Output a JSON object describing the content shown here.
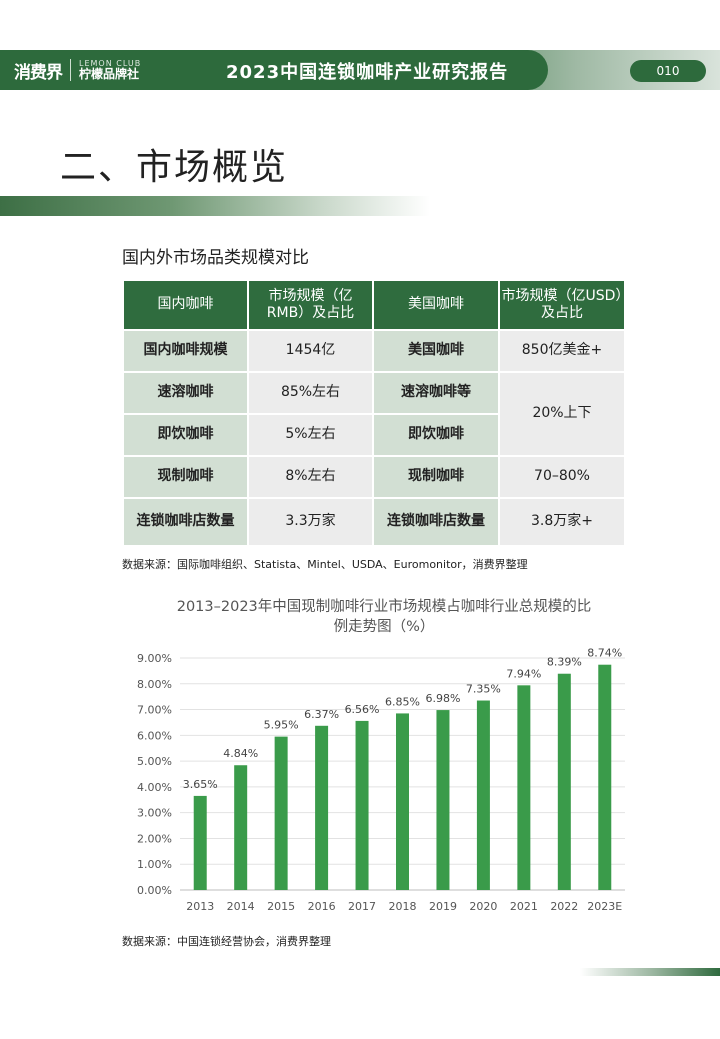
{
  "header": {
    "brand_logo": "消费界",
    "brand_en": "LEMON CLUB",
    "brand_cn": "柠檬品牌社",
    "report_title": "2023中国连锁咖啡产业研究报告",
    "page_number": "010"
  },
  "section": {
    "title": "二、市场概览"
  },
  "table": {
    "title": "国内外市场品类规模对比",
    "headers": [
      "国内咖啡",
      "市场规模（亿RMB）及占比",
      "美国咖啡",
      "市场规模（亿USD）及占比"
    ],
    "rows": [
      [
        "国内咖啡规模",
        "1454亿",
        "美国咖啡",
        "850亿美金+"
      ],
      [
        "速溶咖啡",
        "85%左右",
        "速溶咖啡等",
        "20%上下"
      ],
      [
        "即饮咖啡",
        "5%左右",
        "即饮咖啡",
        ""
      ],
      [
        "现制咖啡",
        "8%左右",
        "现制咖啡",
        "70–80%"
      ],
      [
        "连锁咖啡店数量",
        "3.3万家",
        "连锁咖啡店数量",
        "3.8万家+"
      ]
    ],
    "source": "数据来源：国际咖啡组织、Statista、Mintel、USDA、Euromonitor，消费界整理"
  },
  "chart_source": "数据来源：中国连锁经营协会，消费界整理",
  "chart_data": {
    "type": "bar",
    "title": "2013–2023年中国现制咖啡行业市场规模占咖啡行业总规模的比例走势图（%）",
    "categories": [
      "2013",
      "2014",
      "2015",
      "2016",
      "2017",
      "2018",
      "2019",
      "2020",
      "2021",
      "2022",
      "2023E"
    ],
    "values": [
      3.65,
      4.84,
      5.95,
      6.37,
      6.56,
      6.85,
      6.98,
      7.35,
      7.94,
      8.39,
      8.74
    ],
    "value_labels": [
      "3.65%",
      "4.84%",
      "5.95%",
      "6.37%",
      "6.56%",
      "6.85%",
      "6.98%",
      "7.35%",
      "7.94%",
      "8.39%",
      "8.74%"
    ],
    "y_ticks": [
      "0.00%",
      "1.00%",
      "2.00%",
      "3.00%",
      "4.00%",
      "5.00%",
      "6.00%",
      "7.00%",
      "8.00%",
      "9.00%"
    ],
    "ylim": [
      0,
      9
    ],
    "grid": true,
    "bar_color": "#3a9b4a"
  }
}
